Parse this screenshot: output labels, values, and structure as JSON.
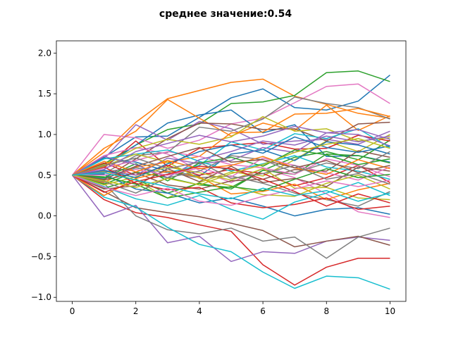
{
  "chart_data": {
    "type": "line",
    "title": "среднее значение:0.54",
    "xlabel": "",
    "ylabel": "",
    "xlim": [
      -0.5,
      10.5
    ],
    "ylim": [
      -1.05,
      2.15
    ],
    "x_ticks": [
      "0",
      "2",
      "4",
      "6",
      "8",
      "10"
    ],
    "y_ticks": [
      "−1.0",
      "−0.5",
      "0.0",
      "0.5",
      "1.0",
      "1.5",
      "2.0"
    ],
    "x_tick_values": [
      0,
      2,
      4,
      6,
      8,
      10
    ],
    "y_tick_values": [
      -1.0,
      -0.5,
      0.0,
      0.5,
      1.0,
      1.5,
      2.0
    ],
    "grid": false,
    "legend": "none",
    "colors": [
      "#1f77b4",
      "#ff7f0e",
      "#2ca02c",
      "#d62728",
      "#9467bd",
      "#8c564b",
      "#e377c2",
      "#7f7f7f",
      "#bcbd22",
      "#17becf"
    ],
    "x": [
      0,
      1,
      2,
      3,
      4,
      5,
      6,
      7,
      8,
      9,
      10
    ],
    "series": [
      {
        "values": [
          0.5,
          0.72,
          0.97,
          0.98,
          1.21,
          1.45,
          1.56,
          1.33,
          1.3,
          1.41,
          1.73
        ]
      },
      {
        "values": [
          0.5,
          0.78,
          1.15,
          1.44,
          1.54,
          1.64,
          1.68,
          1.47,
          1.37,
          1.26,
          1.2
        ]
      },
      {
        "values": [
          0.5,
          0.64,
          0.87,
          1.06,
          1.13,
          1.38,
          1.4,
          1.48,
          1.76,
          1.78,
          1.65
        ]
      },
      {
        "values": [
          0.5,
          0.2,
          0.04,
          -0.02,
          -0.11,
          -0.19,
          -0.6,
          -0.85,
          -0.63,
          -0.52,
          -0.52
        ]
      },
      {
        "values": [
          0.5,
          -0.01,
          0.13,
          -0.33,
          -0.25,
          -0.56,
          -0.44,
          -0.46,
          -0.31,
          -0.26,
          -0.3
        ]
      },
      {
        "values": [
          0.5,
          0.3,
          0.1,
          0.04,
          -0.01,
          -0.09,
          -0.18,
          -0.38,
          -0.31,
          -0.25,
          -0.36
        ]
      },
      {
        "values": [
          0.5,
          1.0,
          0.96,
          0.83,
          0.93,
          1.13,
          1.2,
          1.39,
          1.59,
          1.62,
          1.38
        ]
      },
      {
        "values": [
          0.5,
          0.4,
          0.0,
          -0.17,
          -0.22,
          -0.15,
          -0.31,
          -0.26,
          -0.52,
          -0.26,
          -0.15
        ]
      },
      {
        "values": [
          0.5,
          0.55,
          0.44,
          0.22,
          0.41,
          0.54,
          0.49,
          0.69,
          0.92,
          0.79,
          1.0
        ]
      },
      {
        "values": [
          0.5,
          0.23,
          0.11,
          -0.14,
          -0.35,
          -0.44,
          -0.69,
          -0.89,
          -0.74,
          -0.76,
          -0.9
        ]
      },
      {
        "values": [
          0.5,
          0.6,
          0.87,
          1.14,
          1.24,
          1.3,
          1.02,
          1.12,
          0.73,
          0.74,
          0.66
        ]
      },
      {
        "values": [
          0.5,
          0.83,
          1.04,
          1.43,
          1.2,
          0.98,
          1.14,
          1.05,
          1.36,
          1.05,
          1.23
        ]
      },
      {
        "values": [
          0.5,
          0.34,
          0.45,
          0.28,
          0.4,
          0.33,
          0.56,
          0.72,
          0.79,
          0.69,
          0.93
        ]
      },
      {
        "values": [
          0.5,
          0.59,
          0.92,
          0.61,
          0.83,
          0.87,
          0.9,
          0.82,
          0.83,
          0.99,
          0.92
        ]
      },
      {
        "values": [
          0.5,
          0.7,
          1.12,
          0.93,
          1.16,
          1.07,
          0.88,
          0.92,
          0.94,
          0.88,
          1.04
        ]
      },
      {
        "values": [
          0.5,
          0.46,
          0.7,
          0.95,
          1.14,
          1.13,
          1.06,
          1.07,
          0.92,
          1.13,
          1.15
        ]
      },
      {
        "values": [
          0.5,
          0.74,
          0.84,
          0.76,
          0.56,
          0.41,
          0.58,
          0.47,
          0.27,
          0.05,
          -0.02
        ]
      },
      {
        "values": [
          0.5,
          0.52,
          0.74,
          0.78,
          1.09,
          1.04,
          1.19,
          1.46,
          1.38,
          1.33,
          1.19
        ]
      },
      {
        "values": [
          0.5,
          0.63,
          0.83,
          0.94,
          0.88,
          0.97,
          1.22,
          1.04,
          1.07,
          0.92,
          0.96
        ]
      },
      {
        "values": [
          0.5,
          0.46,
          0.59,
          0.53,
          0.62,
          0.91,
          0.81,
          1.01,
          0.95,
          1.07,
          0.84
        ]
      },
      {
        "values": [
          0.5,
          0.71,
          0.66,
          0.55,
          0.49,
          0.76,
          0.81,
          0.68,
          0.91,
          0.87,
          0.76
        ]
      },
      {
        "values": [
          0.5,
          0.41,
          0.6,
          0.66,
          0.73,
          1.02,
          1.03,
          1.25,
          1.26,
          1.32,
          1.22
        ]
      },
      {
        "values": [
          0.5,
          0.39,
          0.54,
          0.47,
          0.38,
          0.35,
          0.56,
          0.51,
          0.76,
          0.74,
          0.65
        ]
      },
      {
        "values": [
          0.5,
          0.65,
          0.5,
          0.62,
          0.5,
          0.57,
          0.52,
          0.37,
          0.47,
          0.62,
          0.41
        ]
      },
      {
        "values": [
          0.5,
          0.56,
          0.5,
          0.71,
          0.64,
          0.68,
          0.84,
          0.78,
          1.02,
          1.0,
          0.86
        ]
      },
      {
        "values": [
          0.5,
          0.44,
          0.53,
          0.38,
          0.33,
          0.43,
          0.45,
          0.57,
          0.55,
          0.8,
          0.72
        ]
      },
      {
        "values": [
          0.5,
          0.59,
          0.68,
          0.79,
          0.73,
          0.63,
          0.59,
          0.51,
          0.7,
          0.62,
          0.48
        ]
      },
      {
        "values": [
          0.5,
          0.54,
          0.59,
          0.53,
          0.47,
          0.49,
          0.4,
          0.28,
          0.2,
          0.12,
          0.3
        ]
      },
      {
        "values": [
          0.5,
          0.38,
          0.48,
          0.6,
          0.53,
          0.44,
          0.58,
          0.34,
          0.35,
          0.22,
          0.2
        ]
      },
      {
        "values": [
          0.5,
          0.7,
          0.76,
          0.81,
          0.67,
          0.55,
          0.64,
          0.74,
          0.6,
          0.55,
          0.45
        ]
      },
      {
        "values": [
          0.5,
          0.51,
          0.33,
          0.28,
          0.16,
          0.22,
          0.12,
          0.0,
          0.08,
          0.1,
          0.02
        ]
      },
      {
        "values": [
          0.5,
          0.25,
          0.46,
          0.55,
          0.48,
          0.27,
          0.3,
          0.39,
          0.2,
          0.32,
          0.4
        ]
      },
      {
        "values": [
          0.5,
          0.47,
          0.64,
          0.43,
          0.65,
          0.72,
          0.61,
          0.81,
          0.75,
          0.63,
          0.7
        ]
      },
      {
        "values": [
          0.5,
          0.6,
          0.4,
          0.32,
          0.35,
          0.16,
          0.1,
          0.14,
          0.22,
          0.08,
          0.12
        ]
      },
      {
        "values": [
          0.5,
          0.73,
          0.63,
          0.47,
          0.69,
          0.79,
          0.92,
          0.87,
          0.98,
          0.91,
          0.98
        ]
      },
      {
        "values": [
          0.5,
          0.33,
          0.37,
          0.58,
          0.42,
          0.61,
          0.41,
          0.46,
          0.36,
          0.6,
          0.55
        ]
      },
      {
        "values": [
          0.5,
          0.5,
          0.57,
          0.5,
          0.59,
          0.48,
          0.71,
          0.62,
          0.53,
          0.44,
          0.6
        ]
      },
      {
        "values": [
          0.5,
          0.42,
          0.28,
          0.47,
          0.55,
          0.74,
          0.69,
          0.53,
          0.65,
          0.58,
          0.79
        ]
      },
      {
        "values": [
          0.5,
          0.61,
          0.76,
          0.66,
          0.46,
          0.37,
          0.26,
          0.24,
          0.4,
          0.5,
          0.33
        ]
      },
      {
        "values": [
          0.5,
          0.36,
          0.21,
          0.13,
          0.25,
          0.08,
          -0.04,
          0.17,
          0.28,
          0.41,
          0.25
        ]
      },
      {
        "values": [
          0.5,
          0.56,
          0.47,
          0.64,
          0.79,
          0.87,
          0.77,
          0.97,
          0.84,
          0.78,
          0.86
        ]
      },
      {
        "values": [
          0.5,
          0.67,
          0.54,
          0.68,
          0.58,
          0.62,
          0.73,
          0.59,
          0.51,
          0.69,
          0.58
        ]
      },
      {
        "values": [
          0.5,
          0.48,
          0.39,
          0.22,
          0.29,
          0.36,
          0.31,
          0.45,
          0.58,
          0.47,
          0.51
        ]
      },
      {
        "values": [
          0.5,
          0.29,
          0.42,
          0.51,
          0.61,
          0.58,
          0.45,
          0.3,
          0.12,
          0.27,
          0.16
        ]
      },
      {
        "values": [
          0.5,
          0.57,
          0.79,
          0.89,
          0.99,
          0.91,
          0.98,
          1.1,
          1.02,
          1.06,
          0.94
        ]
      },
      {
        "values": [
          0.5,
          0.45,
          0.61,
          0.73,
          0.84,
          0.66,
          0.69,
          0.59,
          0.68,
          0.53,
          0.62
        ]
      },
      {
        "values": [
          0.5,
          0.35,
          0.25,
          0.34,
          0.18,
          0.13,
          0.24,
          0.33,
          0.43,
          0.36,
          0.44
        ]
      },
      {
        "values": [
          0.5,
          0.62,
          0.71,
          0.58,
          0.66,
          0.46,
          0.52,
          0.62,
          0.45,
          0.52,
          0.39
        ]
      },
      {
        "values": [
          0.5,
          0.43,
          0.35,
          0.46,
          0.38,
          0.52,
          0.63,
          0.78,
          0.88,
          0.95,
          0.83
        ]
      },
      {
        "values": [
          0.5,
          0.53,
          0.44,
          0.36,
          0.27,
          0.21,
          0.34,
          0.25,
          0.31,
          0.18,
          0.28
        ]
      }
    ]
  }
}
